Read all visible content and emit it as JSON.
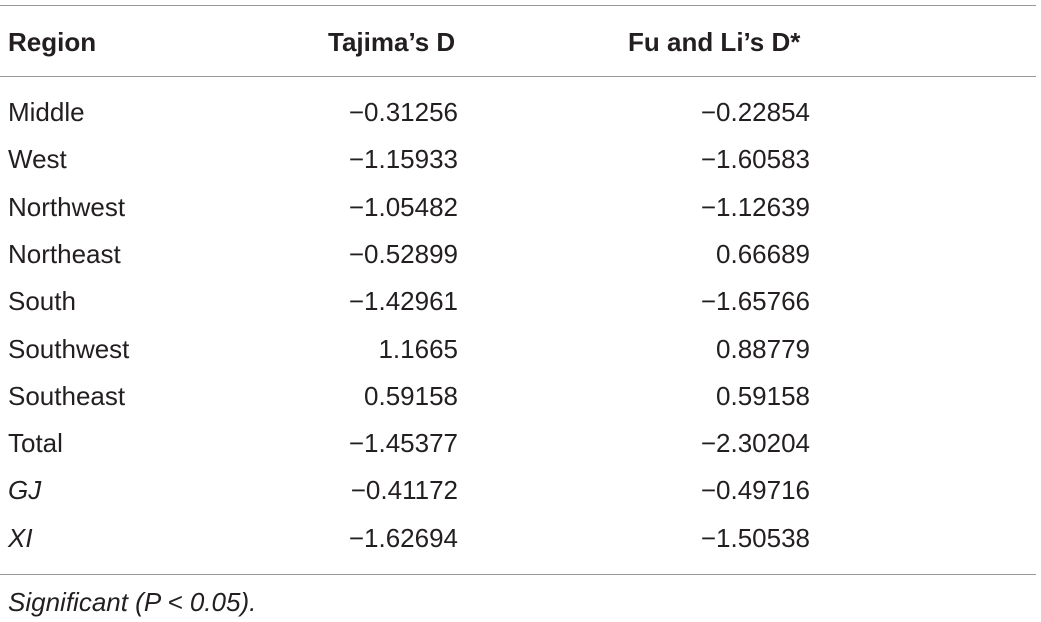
{
  "header": [
    "Region",
    "Tajima’s D",
    "Fu and Li’s D*"
  ],
  "rows": [
    [
      "Middle",
      "−0.31256",
      "−0.22854"
    ],
    [
      "West",
      "−1.15933",
      "−1.60583"
    ],
    [
      "Northwest",
      "−1.05482",
      "−1.12639"
    ],
    [
      "Northeast",
      "−0.52899",
      "0.66689"
    ],
    [
      "South",
      "−1.42961",
      "−1.65766"
    ],
    [
      "Southwest",
      "1.1665",
      "0.88779"
    ],
    [
      "Southeast",
      "0.59158",
      "0.59158"
    ],
    [
      "Total",
      "−1.45377",
      "−2.30204"
    ],
    [
      "GJ",
      "−0.41172",
      "−0.49716"
    ],
    [
      "XI",
      "−1.62694",
      "−1.50538"
    ]
  ],
  "footnote": "Significant (P < 0.05)."
}
